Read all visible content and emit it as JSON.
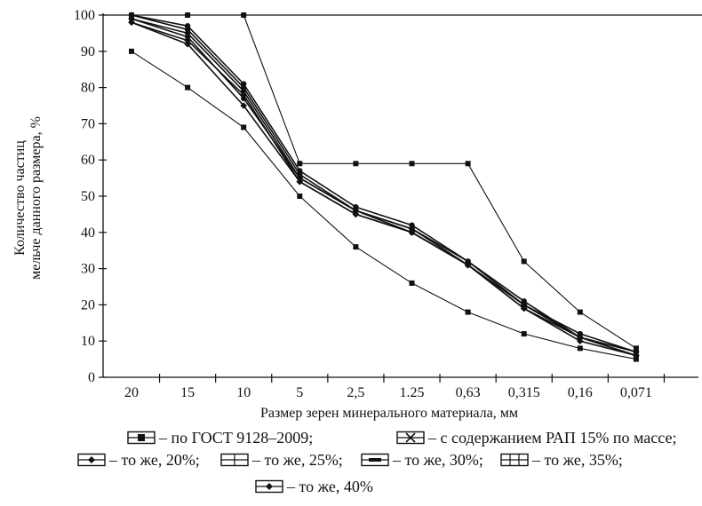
{
  "chart_data": {
    "type": "line",
    "xlabel": "Размер зерен минерального материала, мм",
    "ylabel_line1": "Количество частиц",
    "ylabel_line2": "мельче данного размера, %",
    "categories": [
      "20",
      "15",
      "10",
      "5",
      "2,5",
      "1.25",
      "0,63",
      "0,315",
      "0,16",
      "0,071"
    ],
    "y_ticks": [
      "0",
      "10",
      "20",
      "30",
      "40",
      "50",
      "60",
      "70",
      "80",
      "90",
      "100"
    ],
    "ylim": [
      0,
      100
    ],
    "grid": false,
    "series": [
      {
        "name": "– по ГОСТ 9128–2009; upper",
        "values": [
          100,
          100,
          100,
          59,
          59,
          59,
          59,
          32,
          18,
          8
        ]
      },
      {
        "name": "– по ГОСТ 9128–2009; lower",
        "values": [
          90,
          80,
          69,
          50,
          36,
          26,
          18,
          12,
          8,
          5
        ]
      },
      {
        "name": "– с содержанием РАП 15% по массе;",
        "values": [
          100,
          97,
          81,
          57,
          47,
          42,
          32,
          21,
          11,
          7
        ]
      },
      {
        "name": "– то же, 20%;",
        "values": [
          98,
          92,
          75,
          54,
          45,
          40,
          31,
          19,
          10,
          6
        ]
      },
      {
        "name": "– то же, 25%;",
        "values": [
          99,
          94,
          77,
          55,
          46,
          40,
          31,
          20,
          11,
          6
        ]
      },
      {
        "name": "– то же, 30%;",
        "values": [
          99,
          95,
          79,
          55,
          46,
          41,
          31,
          20,
          11,
          7
        ]
      },
      {
        "name": "– то же, 35%;",
        "values": [
          100,
          96,
          80,
          56,
          46,
          41,
          32,
          20,
          12,
          7
        ]
      },
      {
        "name": "– то же, 40%",
        "values": [
          98,
          93,
          78,
          54,
          45,
          40,
          31,
          19,
          11,
          6
        ]
      }
    ],
    "legend": {
      "placement": "bottom",
      "items": [
        {
          "label": "– по ГОСТ 9128–2009;",
          "marker": "square"
        },
        {
          "label": "– с содержанием РАП 15% по массе;",
          "marker": "star"
        },
        {
          "label": "– то же, 20%;",
          "marker": "diamond"
        },
        {
          "label": "– то же, 25%;",
          "marker": "cross"
        },
        {
          "label": "– то же, 30%;",
          "marker": "dash"
        },
        {
          "label": "– то же, 35%;",
          "marker": "grid"
        },
        {
          "label": "– то же, 40%",
          "marker": "dot"
        }
      ]
    }
  }
}
